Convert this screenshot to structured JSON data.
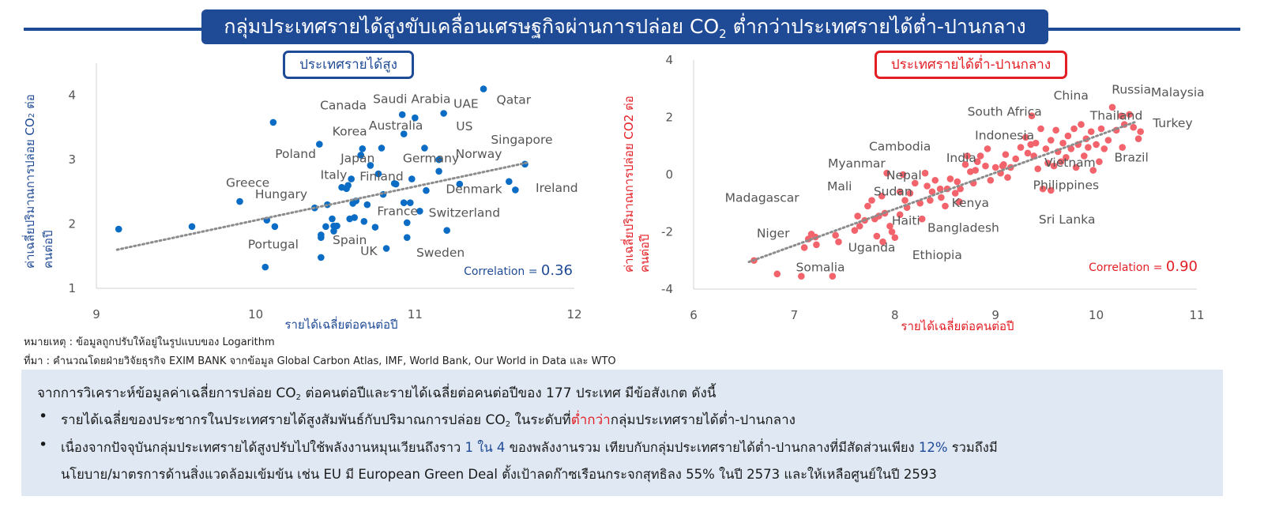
{
  "banner": {
    "title_main": "กลุ่มประเทศรายได้สูงขับเคลื่อนเศรษฐกิจผ่านการปล่อย CO",
    "title_sub": "2",
    "title_tail": " ต่ำกว่าประเทศรายได้ต่ำ-ปานกลาง"
  },
  "left_panel": {
    "title": "ประเทศรายได้สูง",
    "ylabel_line1": "ค่าเฉลี่ยปริมาณการปล่อย CO",
    "ylabel_sub": "2",
    "ylabel_line2": "ต่อคนต่อปี",
    "xlabel": "รายได้เฉลี่ยต่อคนต่อปี",
    "correlation_label": "Correlation = ",
    "correlation_value": "0.36"
  },
  "right_panel": {
    "title": "ประเทศรายได้ต่ำ-ปานกลาง",
    "ylabel_line1": "ค่าเฉลี่ยปริมาณการปล่อย CO2",
    "ylabel_line2": "ต่อคนต่อปี",
    "xlabel": "รายได้เฉลี่ยต่อคนต่อปี",
    "correlation_label": "Correlation = ",
    "correlation_value": "0.90"
  },
  "notes": {
    "remark": "หมายเหตุ : ข้อมูลถูกปรับให้อยู่ในรูปแบบของ Logarithm",
    "source": "ที่มา : คำนวณโดยฝ่ายวิจัยธุรกิจ EXIM BANK จากข้อมูล Global Carbon Atlas, IMF, World Bank, Our World in Data และ WTO"
  },
  "summary": {
    "intro_a": "จากการวิเคราะห์ข้อมูลค่าเฉลี่ยการปล่อย CO",
    "intro_sub": "2",
    "intro_b": " ต่อคนต่อปีและรายได้เฉลี่ยต่อคนต่อปีของ 177 ประเทศ มีข้อสังเกต ดังนี้",
    "b1_a": "รายได้เฉลี่ยของประชากรในประเทศรายได้สูงสัมพันธ์กับปริมาณการปล่อย CO",
    "b1_sub": "2",
    "b1_b": " ในระดับที่",
    "b1_highlight": "ต่ำกว่า",
    "b1_c": "กลุ่มประเทศรายได้ต่ำ-ปานกลาง",
    "b2_a": "เนื่องจากปัจจุบันกลุ่มประเทศรายได้สูงปรับไปใช้พลังงานหมุนเวียนถึงราว ",
    "b2_h1": "1 ใน 4",
    "b2_b": " ของพลังงานรวม เทียบกับกลุ่มประเทศรายได้ต่ำ-ปานกลางที่มีสัดส่วนเพียง ",
    "b2_h2": "12%",
    "b2_c": " รวมถึงมี",
    "b2_line2": "นโยบาย/มาตรการด้านสิ่งแวดล้อมเข้มข้น เช่น EU มี European Green Deal ตั้งเป้าลดก๊าซเรือนกระจกสุทธิลง 55% ในปี 2573 และให้เหลือศูนย์ในปี 2593",
    "bullet_symbol": "•"
  },
  "colors": {
    "banner": "#1f4a96",
    "left_points": "#0a6cc4",
    "right_points": "#f2636b",
    "trend": "#8c8c8c",
    "axis_text": "#555555",
    "country_label": "#555555"
  },
  "chart_data": [
    {
      "type": "scatter",
      "title": "ประเทศรายได้สูง",
      "xlabel": "รายได้เฉลี่ยต่อคนต่อปี",
      "ylabel": "ค่าเฉลี่ยปริมาณการปล่อย CO2 ต่อคนต่อปี",
      "xlim": [
        9,
        12
      ],
      "ylim": [
        1,
        4.5
      ],
      "xticks": [
        9,
        10,
        11,
        12
      ],
      "yticks": [
        1,
        2,
        3,
        4
      ],
      "correlation": 0.36,
      "trend": [
        [
          9.13,
          1.6
        ],
        [
          11.7,
          2.95
        ]
      ],
      "points": [
        [
          9.14,
          1.92
        ],
        [
          9.6,
          1.96
        ],
        [
          9.9,
          2.35
        ],
        [
          10.07,
          2.06
        ],
        [
          10.12,
          1.96
        ],
        [
          10.06,
          1.33
        ],
        [
          10.11,
          3.58
        ],
        [
          10.4,
          3.24
        ],
        [
          10.37,
          2.25
        ],
        [
          10.41,
          1.83
        ],
        [
          10.41,
          1.79
        ],
        [
          10.41,
          1.48
        ],
        [
          10.44,
          1.96
        ],
        [
          10.45,
          2.3
        ],
        [
          10.48,
          2.08
        ],
        [
          10.49,
          1.97
        ],
        [
          10.49,
          1.89
        ],
        [
          10.51,
          1.97
        ],
        [
          10.54,
          2.57
        ],
        [
          10.57,
          2.55
        ],
        [
          10.58,
          2.6
        ],
        [
          10.59,
          2.08
        ],
        [
          10.6,
          2.7
        ],
        [
          10.61,
          2.32
        ],
        [
          10.62,
          2.1
        ],
        [
          10.63,
          2.36
        ],
        [
          10.66,
          3.07
        ],
        [
          10.67,
          3.17
        ],
        [
          10.68,
          2.04
        ],
        [
          10.7,
          2.3
        ],
        [
          10.72,
          2.91
        ],
        [
          10.75,
          1.95
        ],
        [
          10.77,
          2.78
        ],
        [
          10.79,
          3.18
        ],
        [
          10.8,
          2.46
        ],
        [
          10.82,
          1.62
        ],
        [
          10.87,
          2.63
        ],
        [
          10.88,
          2.62
        ],
        [
          10.92,
          3.7
        ],
        [
          10.93,
          3.4
        ],
        [
          10.93,
          2.33
        ],
        [
          10.95,
          2.02
        ],
        [
          10.95,
          1.79
        ],
        [
          10.97,
          2.33
        ],
        [
          10.98,
          2.7
        ],
        [
          11.0,
          3.65
        ],
        [
          11.03,
          2.2
        ],
        [
          11.06,
          3.18
        ],
        [
          11.07,
          2.52
        ],
        [
          11.15,
          3.0
        ],
        [
          11.15,
          2.82
        ],
        [
          11.18,
          3.72
        ],
        [
          11.2,
          1.9
        ],
        [
          11.28,
          2.62
        ],
        [
          11.43,
          4.1
        ],
        [
          11.59,
          2.66
        ],
        [
          11.63,
          2.53
        ],
        [
          11.69,
          2.93
        ]
      ],
      "labels": [
        {
          "text": "Saudi Arabia",
          "x": 10.98,
          "y": 3.94
        },
        {
          "text": "UAE",
          "x": 11.32,
          "y": 3.87
        },
        {
          "text": "Qatar",
          "x": 11.62,
          "y": 3.93
        },
        {
          "text": "Canada",
          "x": 10.55,
          "y": 3.84
        },
        {
          "text": "Australia",
          "x": 10.88,
          "y": 3.53
        },
        {
          "text": "US",
          "x": 11.31,
          "y": 3.52
        },
        {
          "text": "Korea",
          "x": 10.59,
          "y": 3.44
        },
        {
          "text": "Singapore",
          "x": 11.67,
          "y": 3.31
        },
        {
          "text": "Poland",
          "x": 10.25,
          "y": 3.09
        },
        {
          "text": "Norway",
          "x": 11.4,
          "y": 3.09
        },
        {
          "text": "Japan",
          "x": 10.64,
          "y": 3.02
        },
        {
          "text": "Germany",
          "x": 11.1,
          "y": 3.02
        },
        {
          "text": "Italy",
          "x": 10.49,
          "y": 2.76
        },
        {
          "text": "Finland",
          "x": 10.79,
          "y": 2.74
        },
        {
          "text": "Greece",
          "x": 9.95,
          "y": 2.64
        },
        {
          "text": "Denmark",
          "x": 11.37,
          "y": 2.54
        },
        {
          "text": "Ireland",
          "x": 11.89,
          "y": 2.56
        },
        {
          "text": "Hungary",
          "x": 10.16,
          "y": 2.46
        },
        {
          "text": "France",
          "x": 10.89,
          "y": 2.2
        },
        {
          "text": "Switzerland",
          "x": 11.31,
          "y": 2.17
        },
        {
          "text": "Spain",
          "x": 10.59,
          "y": 1.75
        },
        {
          "text": "Portugal",
          "x": 10.11,
          "y": 1.68
        },
        {
          "text": "UK",
          "x": 10.71,
          "y": 1.58
        },
        {
          "text": "Sweden",
          "x": 11.16,
          "y": 1.55
        }
      ]
    },
    {
      "type": "scatter",
      "title": "ประเทศรายได้ต่ำ-ปานกลาง",
      "xlabel": "รายได้เฉลี่ยต่อคนต่อปี",
      "ylabel": "ค่าเฉลี่ยปริมาณการปล่อย CO2 ต่อคนต่อปี",
      "xlim": [
        6,
        11
      ],
      "ylim": [
        -4,
        4
      ],
      "xticks": [
        6,
        7,
        8,
        9,
        10,
        11
      ],
      "yticks": [
        -4,
        -2,
        0,
        2,
        4
      ],
      "correlation": 0.9,
      "trend": [
        [
          6.55,
          -3.05
        ],
        [
          10.4,
          1.85
        ]
      ],
      "points": [
        [
          6.6,
          -3.0
        ],
        [
          6.83,
          -3.47
        ],
        [
          7.1,
          -2.55
        ],
        [
          7.14,
          -2.25
        ],
        [
          7.17,
          -2.08
        ],
        [
          7.21,
          -2.18
        ],
        [
          7.22,
          -2.45
        ],
        [
          7.07,
          -3.55
        ],
        [
          7.38,
          -3.55
        ],
        [
          7.41,
          -2.12
        ],
        [
          7.44,
          -2.35
        ],
        [
          7.6,
          -1.95
        ],
        [
          7.63,
          -1.45
        ],
        [
          7.65,
          -1.8
        ],
        [
          7.7,
          -1.6
        ],
        [
          7.73,
          -1.1
        ],
        [
          7.77,
          -0.9
        ],
        [
          7.8,
          -1.55
        ],
        [
          7.82,
          -2.15
        ],
        [
          7.84,
          -1.45
        ],
        [
          7.87,
          -0.75
        ],
        [
          7.88,
          -2.35
        ],
        [
          7.9,
          -1.35
        ],
        [
          7.92,
          0.05
        ],
        [
          7.95,
          -1.8
        ],
        [
          7.97,
          -2.0
        ],
        [
          8.0,
          -2.2
        ],
        [
          8.05,
          -1.4
        ],
        [
          8.05,
          -0.6
        ],
        [
          8.08,
          0.0
        ],
        [
          8.1,
          -0.9
        ],
        [
          8.12,
          -1.15
        ],
        [
          8.15,
          -0.65
        ],
        [
          8.2,
          -0.3
        ],
        [
          8.25,
          -1.0
        ],
        [
          8.27,
          -1.55
        ],
        [
          8.3,
          0.05
        ],
        [
          8.32,
          -0.4
        ],
        [
          8.35,
          -0.9
        ],
        [
          8.37,
          -0.6
        ],
        [
          8.4,
          -0.2
        ],
        [
          8.45,
          -0.5
        ],
        [
          8.46,
          -0.8
        ],
        [
          8.5,
          -1.1
        ],
        [
          8.52,
          -0.5
        ],
        [
          8.55,
          -0.15
        ],
        [
          8.6,
          -0.65
        ],
        [
          8.62,
          -0.25
        ],
        [
          8.64,
          -0.95
        ],
        [
          8.65,
          -0.5
        ],
        [
          8.7,
          0.35
        ],
        [
          8.72,
          0.65
        ],
        [
          8.75,
          0.1
        ],
        [
          8.78,
          -0.3
        ],
        [
          8.8,
          0.15
        ],
        [
          8.82,
          0.45
        ],
        [
          8.85,
          0.65
        ],
        [
          8.9,
          0.3
        ],
        [
          8.92,
          0.9
        ],
        [
          8.95,
          -0.2
        ],
        [
          9.0,
          0.25
        ],
        [
          9.05,
          0.05
        ],
        [
          9.08,
          0.35
        ],
        [
          9.1,
          0.7
        ],
        [
          9.12,
          -0.1
        ],
        [
          9.15,
          0.25
        ],
        [
          9.2,
          0.55
        ],
        [
          9.25,
          0.95
        ],
        [
          9.3,
          1.3
        ],
        [
          9.32,
          0.75
        ],
        [
          9.35,
          1.05
        ],
        [
          9.38,
          0.65
        ],
        [
          9.4,
          1.1
        ],
        [
          9.42,
          0.2
        ],
        [
          9.45,
          1.6
        ],
        [
          9.47,
          -0.5
        ],
        [
          9.5,
          0.9
        ],
        [
          9.52,
          0.4
        ],
        [
          9.55,
          1.2
        ],
        [
          9.58,
          0.3
        ],
        [
          9.6,
          1.55
        ],
        [
          9.62,
          0.8
        ],
        [
          9.65,
          0.45
        ],
        [
          9.67,
          1.1
        ],
        [
          9.7,
          0.6
        ],
        [
          9.72,
          1.35
        ],
        [
          9.75,
          0.9
        ],
        [
          9.78,
          1.6
        ],
        [
          9.8,
          0.25
        ],
        [
          9.82,
          1.05
        ],
        [
          9.85,
          1.75
        ],
        [
          9.88,
          0.65
        ],
        [
          9.9,
          1.25
        ],
        [
          9.92,
          0.95
        ],
        [
          9.95,
          1.5
        ],
        [
          9.97,
          0.15
        ],
        [
          10.0,
          1.05
        ],
        [
          10.03,
          0.45
        ],
        [
          10.05,
          1.6
        ],
        [
          10.08,
          0.9
        ],
        [
          10.12,
          1.2
        ],
        [
          10.16,
          2.35
        ],
        [
          10.2,
          1.55
        ],
        [
          10.25,
          2.05
        ],
        [
          10.28,
          1.75
        ],
        [
          10.33,
          2.1
        ],
        [
          10.37,
          1.65
        ],
        [
          10.42,
          1.25
        ],
        [
          10.44,
          1.5
        ],
        [
          10.26,
          0.95
        ],
        [
          9.55,
          -0.55
        ],
        [
          9.36,
          2.05
        ],
        [
          9.07,
          0.3
        ]
      ],
      "labels": [
        {
          "text": "Russia",
          "x": 10.35,
          "y": 2.96
        },
        {
          "text": "Malaysia",
          "x": 10.81,
          "y": 2.87
        },
        {
          "text": "China",
          "x": 9.75,
          "y": 2.76
        },
        {
          "text": "Thailand",
          "x": 10.2,
          "y": 2.05
        },
        {
          "text": "South Africa",
          "x": 9.09,
          "y": 2.2
        },
        {
          "text": "Turkey",
          "x": 10.76,
          "y": 1.8
        },
        {
          "text": "Indonesia",
          "x": 9.09,
          "y": 1.37
        },
        {
          "text": "Cambodia",
          "x": 8.05,
          "y": 0.98
        },
        {
          "text": "India",
          "x": 8.66,
          "y": 0.58
        },
        {
          "text": "Brazil",
          "x": 10.35,
          "y": 0.6
        },
        {
          "text": "Myanmar",
          "x": 7.62,
          "y": 0.38
        },
        {
          "text": "Vietnam",
          "x": 9.74,
          "y": 0.42
        },
        {
          "text": "Nepal",
          "x": 8.09,
          "y": -0.03
        },
        {
          "text": "Mali",
          "x": 7.45,
          "y": -0.42
        },
        {
          "text": "Philippines",
          "x": 9.7,
          "y": -0.37
        },
        {
          "text": "Sudan",
          "x": 7.98,
          "y": -0.59
        },
        {
          "text": "Madagascar",
          "x": 6.68,
          "y": -0.82
        },
        {
          "text": "Kenya",
          "x": 8.75,
          "y": -0.99
        },
        {
          "text": "Haiti",
          "x": 8.11,
          "y": -1.61
        },
        {
          "text": "Sri Lanka",
          "x": 9.71,
          "y": -1.57
        },
        {
          "text": "Bangladesh",
          "x": 8.68,
          "y": -1.86
        },
        {
          "text": "Niger",
          "x": 6.79,
          "y": -2.06
        },
        {
          "text": "Uganda",
          "x": 7.77,
          "y": -2.55
        },
        {
          "text": "Ethiopia",
          "x": 8.42,
          "y": -2.82
        },
        {
          "text": "Somalia",
          "x": 7.26,
          "y": -3.24
        }
      ]
    }
  ]
}
